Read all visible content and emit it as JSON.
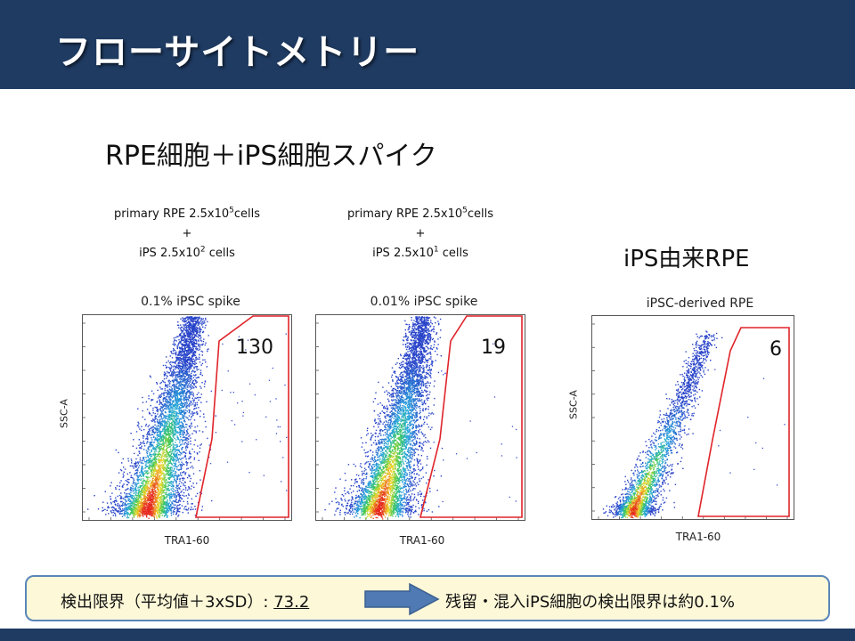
{
  "slide_title": "フローサイトメトリー",
  "subtitle": "RPE細胞＋iPS細胞スパイク",
  "conditions": [
    {
      "line1": "primary RPE 2.5x10",
      "exp1": "5",
      "line1_tail": "cells",
      "plus": "+",
      "line3": "iPS 2.5x10",
      "exp3": "2",
      "line3_tail": " cells"
    },
    {
      "line1": "primary RPE 2.5x10",
      "exp1": "5",
      "line1_tail": "cells",
      "plus": "+",
      "line3": "iPS 2.5x10",
      "exp3": "1",
      "line3_tail": " cells"
    }
  ],
  "ips_rpe_label": "iPS由来RPE",
  "plots": [
    {
      "title": "0.1% iPSC spike",
      "ylabel": "SSC-A",
      "xlabel": "TRA1-60",
      "gate_count": "130"
    },
    {
      "title": "0.01% iPSC spike",
      "ylabel": "",
      "xlabel": "TRA1-60",
      "gate_count": "19"
    },
    {
      "title": "iPSC-derived RPE",
      "ylabel": "SSC-A",
      "xlabel": "TRA1-60",
      "gate_count": "6"
    }
  ],
  "summary": {
    "left_text": "検出限界（平均値＋3xSD）: ",
    "left_value": "73.2",
    "right_text": "残留・混入iPS細胞の検出限界は約0.1%"
  },
  "colors": {
    "header": "#1f3b62",
    "gate": "#e0242a",
    "summary_bg": "#fdf8d8",
    "summary_border": "#5a86b8",
    "arrow": "#4f7ab3"
  }
}
